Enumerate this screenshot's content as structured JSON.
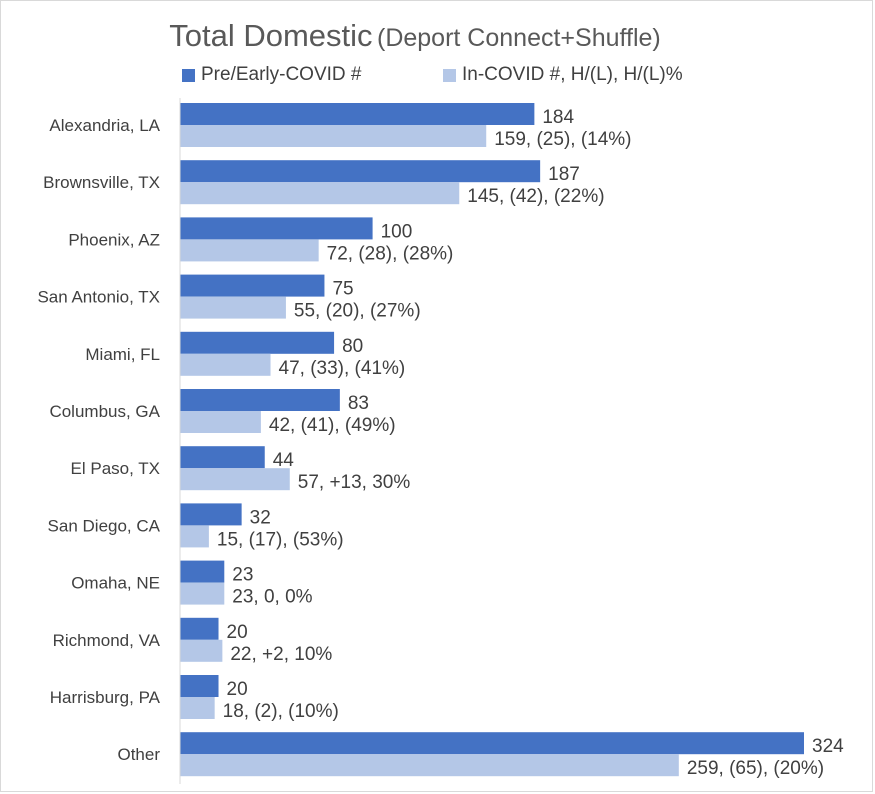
{
  "chart_data": {
    "type": "bar",
    "orientation": "horizontal",
    "title": "Total Domestic",
    "subtitle": "(Deport Connect+Shuffle)",
    "categories": [
      "Alexandria, LA",
      "Brownsville, TX",
      "Phoenix, AZ",
      "San Antonio, TX",
      "Miami, FL",
      "Columbus, GA",
      "El Paso, TX",
      "San Diego, CA",
      "Omaha, NE",
      "Richmond, VA",
      "Harrisburg, PA",
      "Other"
    ],
    "series": [
      {
        "name": "Pre/Early-COVID #",
        "color": "#4472c4",
        "values": [
          184,
          187,
          100,
          75,
          80,
          83,
          44,
          32,
          23,
          20,
          20,
          324
        ],
        "labels": [
          "184",
          "187",
          "100",
          "75",
          "80",
          "83",
          "44",
          "32",
          "23",
          "20",
          "20",
          "324"
        ]
      },
      {
        "name": "In-COVID #, H/(L), H/(L)%",
        "color": "#b4c7e7",
        "values": [
          159,
          145,
          72,
          55,
          47,
          42,
          57,
          15,
          23,
          22,
          18,
          259
        ],
        "labels": [
          "159, (25), (14%)",
          "145, (42), (22%)",
          "72, (28), (28%)",
          "55, (20), (27%)",
          "47, (33), (41%)",
          "42, (41), (49%)",
          "57, +13, 30%",
          "15, (17), (53%)",
          "23, 0, 0%",
          "22, +2, 10%",
          "18, (2), (10%)",
          "259, (65), (20%)"
        ]
      }
    ],
    "xlim": [
      0,
      324
    ],
    "grid": false,
    "legend_position": "top"
  }
}
